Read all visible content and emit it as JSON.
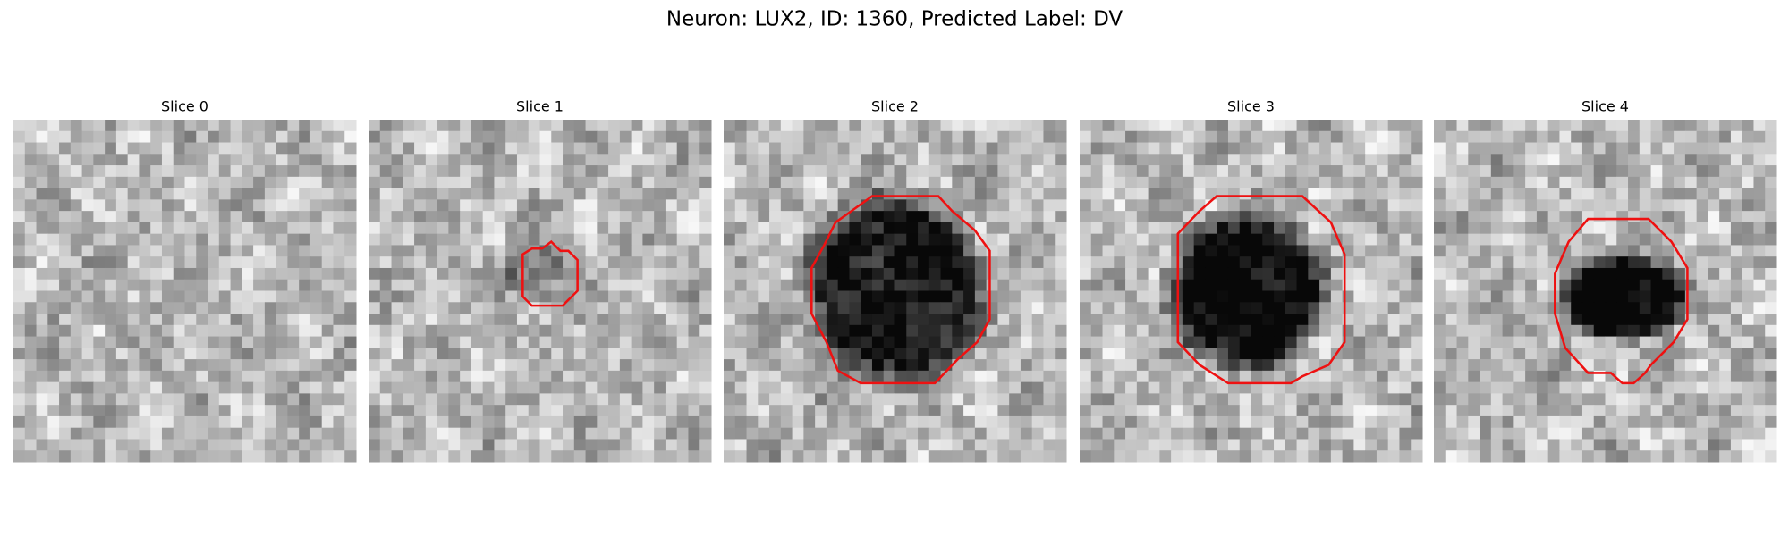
{
  "title": "Neuron: LUX2, ID: 1360, Predicted Label: DV",
  "panels": [
    {
      "title": "Slice 0"
    },
    {
      "title": "Slice 1"
    },
    {
      "title": "Slice 2"
    },
    {
      "title": "Slice 3"
    },
    {
      "title": "Slice 4"
    }
  ]
}
